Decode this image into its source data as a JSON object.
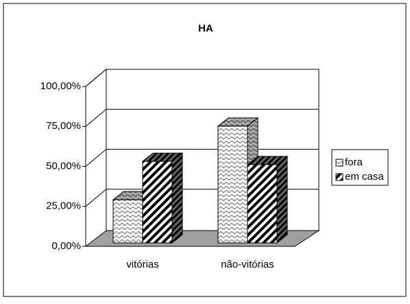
{
  "chart_data": {
    "type": "bar3d",
    "title": "HA",
    "categories": [
      "vitórias",
      "não-vitórias"
    ],
    "series": [
      {
        "name": "fora",
        "values": [
          27,
          73
        ]
      },
      {
        "name": "em casa",
        "values": [
          51,
          49
        ]
      }
    ],
    "ylim": [
      0,
      100
    ],
    "yticks": [
      {
        "value": 0,
        "label": "0,00%"
      },
      {
        "value": 25,
        "label": "25,00%"
      },
      {
        "value": 50,
        "label": "50,00%"
      },
      {
        "value": 75,
        "label": "75,00%"
      },
      {
        "value": 100,
        "label": "100,00%"
      }
    ],
    "grid": true,
    "legend": "right"
  }
}
